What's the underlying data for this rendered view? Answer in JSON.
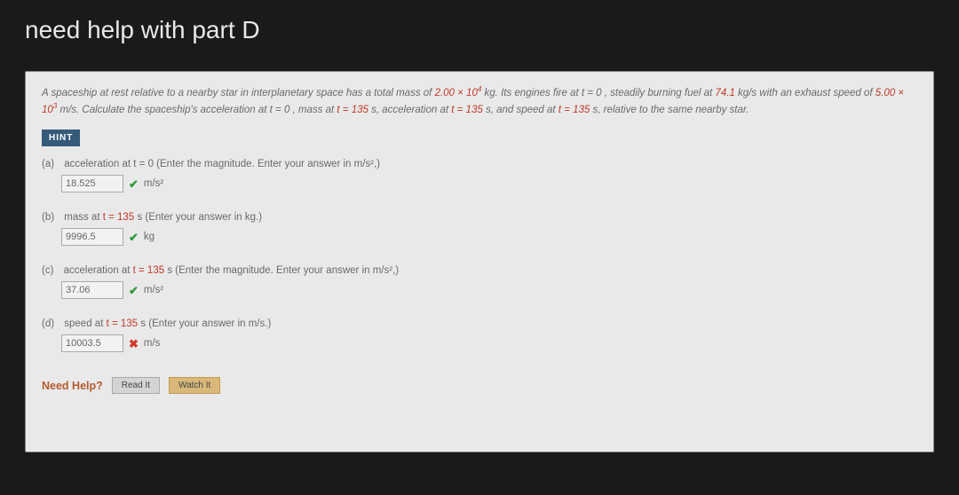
{
  "page": {
    "title": "need help with part D"
  },
  "problem": {
    "text_1": "A spaceship at rest relative to a nearby star in interplanetary space has a total mass of ",
    "mass_val": "2.00 × 10",
    "mass_exp": "4",
    "text_2": " kg. Its engines fire at ",
    "t0": "t = 0",
    "text_3": ", steadily burning fuel at ",
    "burn_rate": "74.1",
    "text_4": " kg/s with an exhaust speed of ",
    "exhaust_val": "5.00 × 10",
    "exhaust_exp": "3",
    "text_5": " m/s. Calculate the spaceship's acceleration at ",
    "t0b": "t = 0",
    "text_6": ", mass at ",
    "t135a": "t = 135",
    "text_7": " s, acceleration at ",
    "t135b": "t = 135",
    "text_8": " s, and speed at ",
    "t135c": "t = 135",
    "text_9": " s, relative to the same nearby star."
  },
  "hint_label": "HINT",
  "parts": {
    "a": {
      "letter": "(a)",
      "prefix": "acceleration at ",
      "eq": "t = 0",
      "suffix": " (Enter the magnitude. Enter your answer in m/s²,)",
      "value": "18.525",
      "mark": "✔",
      "mark_class": "correct",
      "unit": "m/s²"
    },
    "b": {
      "letter": "(b)",
      "prefix": "mass at ",
      "eq": "t = 135",
      "suffix": " s (Enter your answer in kg.)",
      "value": "9996.5",
      "mark": "✔",
      "mark_class": "correct",
      "unit": "kg"
    },
    "c": {
      "letter": "(c)",
      "prefix": "acceleration at ",
      "eq": "t = 135",
      "suffix": " s (Enter the magnitude. Enter your answer in m/s²,)",
      "value": "37.06",
      "mark": "✔",
      "mark_class": "correct",
      "unit": "m/s²"
    },
    "d": {
      "letter": "(d)",
      "prefix": "speed at ",
      "eq": "t = 135",
      "suffix": " s (Enter your answer in m/s.)",
      "value": "10003.5",
      "mark": "✖",
      "mark_class": "wrong",
      "unit": "m/s"
    }
  },
  "need_help": {
    "label": "Need Help?",
    "read": "Read It",
    "watch": "Watch It"
  }
}
